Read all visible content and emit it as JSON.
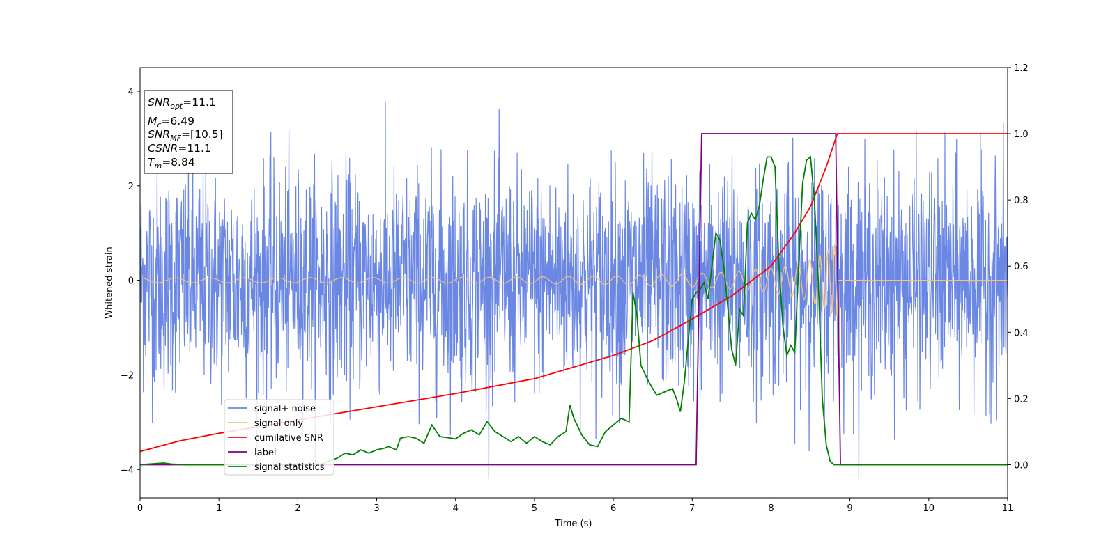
{
  "chart_data": {
    "type": "line",
    "xlabel": "Time (s)",
    "ylabel": "Whitened strain",
    "xlim": [
      0,
      11
    ],
    "ylim_left": [
      -4.6,
      4.5
    ],
    "ylim_right": [
      -0.1,
      1.2
    ],
    "x_ticks": [
      0,
      1,
      2,
      3,
      4,
      5,
      6,
      7,
      8,
      9,
      10,
      11
    ],
    "y_ticks_left": [
      -4,
      -2,
      0,
      2,
      4
    ],
    "y_ticks_right": [
      0.0,
      0.2,
      0.4,
      0.6,
      0.8,
      1.0,
      1.2
    ],
    "x_tick_labels": [
      "0",
      "1",
      "2",
      "3",
      "4",
      "5",
      "6",
      "7",
      "8",
      "9",
      "10",
      "11"
    ],
    "y_tick_labels_left": [
      "−4",
      "−2",
      "0",
      "2",
      "4"
    ],
    "y_tick_labels_right": [
      "0.0",
      "0.2",
      "0.4",
      "0.6",
      "0.8",
      "1.0",
      "1.2"
    ],
    "legend_position": "lower-left",
    "annotation": {
      "lines": [
        {
          "base": "SNR",
          "sub": "opt",
          "value": "=11.1"
        },
        {
          "base": "M",
          "sub": "c",
          "value": "=6.49"
        },
        {
          "base": "SNR",
          "sub": "MF",
          "value": "=[10.5]"
        },
        {
          "base": "CSNR",
          "sub": "",
          "value": "=11.1"
        },
        {
          "base": "T",
          "sub": "m",
          "value": "=8.84"
        }
      ]
    },
    "series": [
      {
        "name": "signal+ noise",
        "axis": "left",
        "color": "#6b87e4",
        "description": "whitened noisy strain, roughly Gaussian with amplitude about ±3.5 over full time range",
        "amplitude_sigma": 1.15,
        "x_range": [
          0,
          11
        ]
      },
      {
        "name": "signal only",
        "axis": "left",
        "color": "#f6c27a",
        "description": "chirp waveform growing toward merger",
        "envelope": {
          "x": [
            0,
            2,
            4,
            5,
            6,
            7,
            7.5,
            8,
            8.3,
            8.5,
            8.7,
            8.84,
            8.85,
            11
          ],
          "amp": [
            0.05,
            0.055,
            0.06,
            0.07,
            0.09,
            0.14,
            0.18,
            0.26,
            0.35,
            0.45,
            0.62,
            0.8,
            0,
            0
          ]
        }
      },
      {
        "name": "cumilative SNR",
        "axis": "right",
        "color": "#ff0000",
        "x": [
          0,
          0.5,
          1,
          2,
          3,
          4,
          5,
          6,
          6.5,
          7,
          7.5,
          8,
          8.3,
          8.5,
          8.7,
          8.84,
          8.85,
          11
        ],
        "y": [
          0.04,
          0.072,
          0.095,
          0.135,
          0.175,
          0.215,
          0.26,
          0.33,
          0.375,
          0.44,
          0.51,
          0.6,
          0.7,
          0.78,
          0.9,
          1.0,
          1.0,
          1.0
        ]
      },
      {
        "name": "label",
        "axis": "right",
        "color": "#800080",
        "x": [
          0,
          7.05,
          7.12,
          8.82,
          8.88,
          11
        ],
        "y": [
          0,
          0,
          1,
          1,
          0,
          0
        ]
      },
      {
        "name": "signal statistics",
        "axis": "right",
        "color": "#008000",
        "x": [
          0,
          0.3,
          0.4,
          0.6,
          1.0,
          1.5,
          2.0,
          2.3,
          2.5,
          2.6,
          2.7,
          2.8,
          2.9,
          3.0,
          3.1,
          3.15,
          3.25,
          3.3,
          3.4,
          3.5,
          3.6,
          3.7,
          3.8,
          3.9,
          4.0,
          4.1,
          4.2,
          4.3,
          4.4,
          4.5,
          4.6,
          4.7,
          4.8,
          4.9,
          5.0,
          5.1,
          5.2,
          5.3,
          5.4,
          5.45,
          5.5,
          5.6,
          5.7,
          5.8,
          5.9,
          6.0,
          6.1,
          6.2,
          6.25,
          6.3,
          6.35,
          6.45,
          6.55,
          6.65,
          6.75,
          6.8,
          6.85,
          6.9,
          7.0,
          7.05,
          7.1,
          7.15,
          7.2,
          7.3,
          7.35,
          7.4,
          7.45,
          7.5,
          7.55,
          7.6,
          7.65,
          7.7,
          7.75,
          7.8,
          7.85,
          7.9,
          7.95,
          8.0,
          8.05,
          8.1,
          8.15,
          8.2,
          8.25,
          8.3,
          8.35,
          8.4,
          8.45,
          8.5,
          8.55,
          8.6,
          8.65,
          8.7,
          8.75,
          8.8,
          8.85,
          8.9,
          9.0,
          9.2,
          10.0,
          11.0
        ],
        "y": [
          0.0,
          0.005,
          0.002,
          0.0,
          0.0,
          0.0,
          0.002,
          0.002,
          0.02,
          0.035,
          0.03,
          0.045,
          0.035,
          0.045,
          0.05,
          0.055,
          0.045,
          0.08,
          0.085,
          0.08,
          0.065,
          0.12,
          0.085,
          0.082,
          0.078,
          0.095,
          0.105,
          0.09,
          0.13,
          0.1,
          0.085,
          0.07,
          0.085,
          0.065,
          0.085,
          0.07,
          0.06,
          0.085,
          0.1,
          0.18,
          0.14,
          0.09,
          0.06,
          0.055,
          0.1,
          0.12,
          0.14,
          0.13,
          0.52,
          0.45,
          0.3,
          0.25,
          0.21,
          0.22,
          0.23,
          0.2,
          0.16,
          0.25,
          0.5,
          0.52,
          0.53,
          0.55,
          0.5,
          0.7,
          0.68,
          0.6,
          0.48,
          0.35,
          0.3,
          0.47,
          0.45,
          0.73,
          0.76,
          0.74,
          0.78,
          0.86,
          0.93,
          0.93,
          0.9,
          0.6,
          0.42,
          0.33,
          0.36,
          0.34,
          0.6,
          0.85,
          0.92,
          0.93,
          0.8,
          0.55,
          0.2,
          0.06,
          0.01,
          0.0,
          0.0,
          0.0,
          0.0,
          0.0,
          0.0,
          0.0
        ]
      }
    ]
  }
}
